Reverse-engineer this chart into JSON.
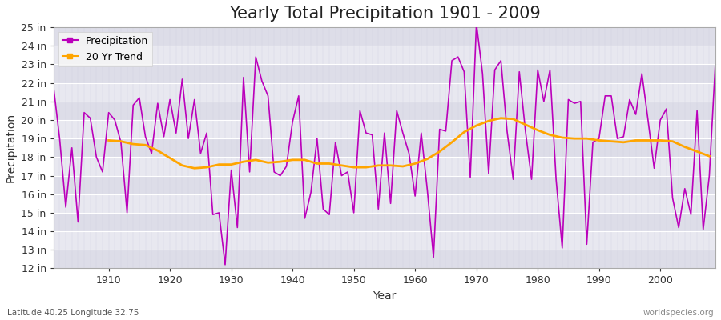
{
  "title": "Yearly Total Precipitation 1901 - 2009",
  "xlabel": "Year",
  "ylabel": "Precipitation",
  "lat_lon_label": "Latitude 40.25 Longitude 32.75",
  "watermark": "worldspecies.org",
  "years": [
    1901,
    1902,
    1903,
    1904,
    1905,
    1906,
    1907,
    1908,
    1909,
    1910,
    1911,
    1912,
    1913,
    1914,
    1915,
    1916,
    1917,
    1918,
    1919,
    1920,
    1921,
    1922,
    1923,
    1924,
    1925,
    1926,
    1927,
    1928,
    1929,
    1930,
    1931,
    1932,
    1933,
    1934,
    1935,
    1936,
    1937,
    1938,
    1939,
    1940,
    1941,
    1942,
    1943,
    1944,
    1945,
    1946,
    1947,
    1948,
    1949,
    1950,
    1951,
    1952,
    1953,
    1954,
    1955,
    1956,
    1957,
    1958,
    1959,
    1960,
    1961,
    1962,
    1963,
    1964,
    1965,
    1966,
    1967,
    1968,
    1969,
    1970,
    1971,
    1972,
    1973,
    1974,
    1975,
    1976,
    1977,
    1978,
    1979,
    1980,
    1981,
    1982,
    1983,
    1984,
    1985,
    1986,
    1987,
    1988,
    1989,
    1990,
    1991,
    1992,
    1993,
    1994,
    1995,
    1996,
    1997,
    1998,
    1999,
    2000,
    2001,
    2002,
    2003,
    2004,
    2005,
    2006,
    2007,
    2008,
    2009
  ],
  "precip_in": [
    21.8,
    19.0,
    15.3,
    18.5,
    14.5,
    20.4,
    20.1,
    18.0,
    17.2,
    20.4,
    20.0,
    18.8,
    15.0,
    20.8,
    21.2,
    19.1,
    18.2,
    20.9,
    19.1,
    21.1,
    19.3,
    22.2,
    19.0,
    21.1,
    18.2,
    19.3,
    14.9,
    15.0,
    12.2,
    17.3,
    14.2,
    22.3,
    17.2,
    23.4,
    22.1,
    21.3,
    17.2,
    17.0,
    17.5,
    19.9,
    21.3,
    14.7,
    16.1,
    19.0,
    15.2,
    14.9,
    18.8,
    17.0,
    17.2,
    15.0,
    20.5,
    19.3,
    19.2,
    15.2,
    19.3,
    15.5,
    20.5,
    19.3,
    18.2,
    15.9,
    19.3,
    16.2,
    12.6,
    19.5,
    19.4,
    23.2,
    23.4,
    22.6,
    16.9,
    25.2,
    22.5,
    17.1,
    22.7,
    23.2,
    19.4,
    16.8,
    22.6,
    19.4,
    16.8,
    22.7,
    21.0,
    22.7,
    16.8,
    13.1,
    21.1,
    20.9,
    21.0,
    13.3,
    18.8,
    19.0,
    21.3,
    21.3,
    19.0,
    19.1,
    21.1,
    20.3,
    22.5,
    20.0,
    17.4,
    20.0,
    20.6,
    15.8,
    14.2,
    16.3,
    14.9,
    20.5,
    14.1,
    17.0,
    23.1
  ],
  "trend_years": [
    1910,
    1912,
    1914,
    1916,
    1918,
    1920,
    1922,
    1924,
    1926,
    1928,
    1930,
    1932,
    1934,
    1936,
    1938,
    1940,
    1942,
    1944,
    1946,
    1948,
    1950,
    1952,
    1954,
    1956,
    1958,
    1960,
    1962,
    1964,
    1966,
    1968,
    1970,
    1972,
    1974,
    1976,
    1978,
    1980,
    1982,
    1984,
    1986,
    1988,
    1990,
    1992,
    1994,
    1996,
    1998,
    2000,
    2002,
    2004,
    2006,
    2008
  ],
  "trend_in": [
    18.9,
    18.85,
    18.7,
    18.65,
    18.35,
    17.95,
    17.55,
    17.4,
    17.45,
    17.6,
    17.6,
    17.75,
    17.85,
    17.7,
    17.75,
    17.85,
    17.85,
    17.65,
    17.65,
    17.55,
    17.45,
    17.45,
    17.55,
    17.55,
    17.5,
    17.65,
    17.9,
    18.3,
    18.8,
    19.35,
    19.7,
    19.95,
    20.1,
    20.05,
    19.75,
    19.45,
    19.2,
    19.05,
    19.0,
    19.0,
    18.9,
    18.85,
    18.8,
    18.9,
    18.9,
    18.9,
    18.85,
    18.55,
    18.3,
    18.05
  ],
  "precip_color": "#bb00bb",
  "trend_color": "#ffa500",
  "bg_color": "#ffffff",
  "plot_bg_color": "#e8e8ec",
  "grid_color": "#ffffff",
  "band_colors": [
    "#dddde8",
    "#e8e8f0"
  ],
  "ylim": [
    12,
    25
  ],
  "ytick_step": 1,
  "xlim": [
    1901,
    2009
  ],
  "xticks": [
    1910,
    1920,
    1930,
    1940,
    1950,
    1960,
    1970,
    1980,
    1990,
    2000
  ],
  "title_fontsize": 15,
  "axis_label_fontsize": 10,
  "tick_fontsize": 9,
  "legend_fontsize": 9
}
